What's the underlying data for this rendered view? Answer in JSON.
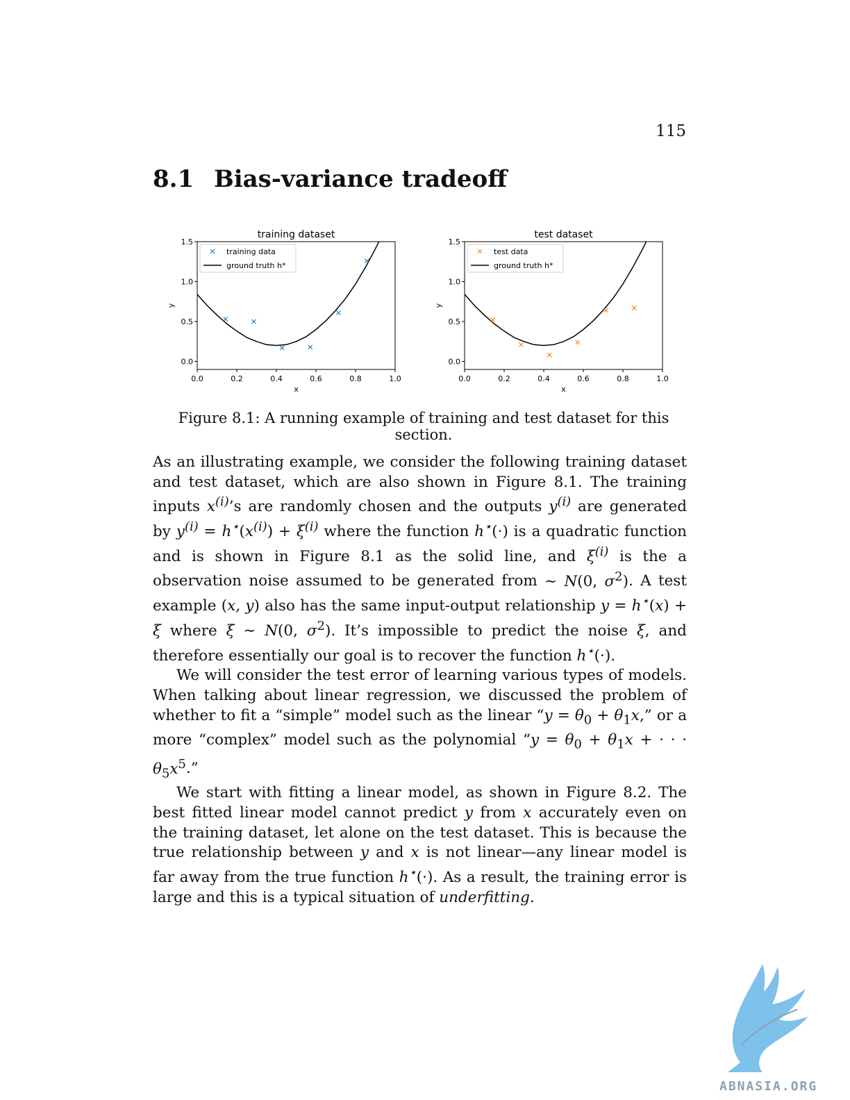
{
  "page": {
    "number": "115"
  },
  "section": {
    "number": "8.1",
    "title": "Bias-variance tradeoff"
  },
  "figure": {
    "caption": "Figure 8.1: A running example of training and test dataset for this section."
  },
  "chart_data": [
    {
      "type": "scatter",
      "title": "training dataset",
      "xlabel": "x",
      "ylabel": "y",
      "xlim": [
        0.0,
        1.0
      ],
      "ylim": [
        -0.1,
        1.5
      ],
      "xticks": [
        "0.0",
        "0.2",
        "0.4",
        "0.6",
        "0.8",
        "1.0"
      ],
      "yticks": [
        "0.0",
        "0.5",
        "1.0",
        "1.5"
      ],
      "grid": false,
      "legend_position": "top-left",
      "series": [
        {
          "name": "training data",
          "kind": "scatter",
          "marker": "x",
          "color": "#1f77b4",
          "x": [
            0.143,
            0.286,
            0.429,
            0.571,
            0.714,
            0.857
          ],
          "y": [
            0.53,
            0.5,
            0.17,
            0.18,
            0.61,
            1.26
          ]
        },
        {
          "name": "ground truth h*",
          "kind": "line",
          "color": "#000000",
          "x": [
            0.0,
            0.05,
            0.1,
            0.15,
            0.2,
            0.25,
            0.3,
            0.35,
            0.4,
            0.45,
            0.5,
            0.55,
            0.6,
            0.65,
            0.7,
            0.75,
            0.8,
            0.85,
            0.9,
            0.95,
            1.0
          ],
          "y": [
            0.84,
            0.7,
            0.58,
            0.47,
            0.38,
            0.3,
            0.25,
            0.21,
            0.2,
            0.21,
            0.25,
            0.31,
            0.4,
            0.51,
            0.64,
            0.79,
            0.97,
            1.18,
            1.41,
            1.66,
            1.94
          ]
        }
      ]
    },
    {
      "type": "scatter",
      "title": "test dataset",
      "xlabel": "x",
      "ylabel": "y",
      "xlim": [
        0.0,
        1.0
      ],
      "ylim": [
        -0.1,
        1.5
      ],
      "xticks": [
        "0.0",
        "0.2",
        "0.4",
        "0.6",
        "0.8",
        "1.0"
      ],
      "yticks": [
        "0.0",
        "0.5",
        "1.0",
        "1.5"
      ],
      "grid": false,
      "legend_position": "top-left",
      "series": [
        {
          "name": "test data",
          "kind": "scatter",
          "marker": "x",
          "color": "#ff7f0e",
          "x": [
            0.143,
            0.286,
            0.429,
            0.571,
            0.714,
            0.857
          ],
          "y": [
            0.52,
            0.21,
            0.08,
            0.24,
            0.64,
            0.67
          ]
        },
        {
          "name": "ground truth h*",
          "kind": "line",
          "color": "#000000",
          "x": [
            0.0,
            0.05,
            0.1,
            0.15,
            0.2,
            0.25,
            0.3,
            0.35,
            0.4,
            0.45,
            0.5,
            0.55,
            0.6,
            0.65,
            0.7,
            0.75,
            0.8,
            0.85,
            0.9,
            0.95,
            1.0
          ],
          "y": [
            0.84,
            0.7,
            0.58,
            0.47,
            0.38,
            0.3,
            0.25,
            0.21,
            0.2,
            0.21,
            0.25,
            0.31,
            0.4,
            0.51,
            0.64,
            0.79,
            0.97,
            1.18,
            1.41,
            1.66,
            1.94
          ]
        }
      ]
    }
  ],
  "body": {
    "p1": {
      "t1": "As an illustrating example, we consider the following training dataset and test dataset, which are also shown in Figure 8.1. The training inputs ",
      "t2": "’s are randomly chosen and the outputs ",
      "t3": " are generated by ",
      "t4": " where the function ",
      "t5": " is a quadratic function and is shown in Figure 8.1 as the solid line, and ",
      "t6": " is the a observation noise assumed to be generated from ",
      "t7": ". A test example ",
      "t8": " also has the same input-output relationship ",
      "t9": " where ",
      "t10": ". It’s impossible to predict the noise ",
      "t11": ", and therefore essentially our goal is to recover the function ",
      "t12": "."
    },
    "p2": {
      "t1": "We will consider the test error of learning various types of models. When talking about linear regression, we discussed the problem of whether to fit a “simple” model such as the linear “",
      "t2": ",” or a more “complex” model such as the polynomial “",
      "t3": ".”"
    },
    "p3": {
      "t1": "We start with fitting a linear model, as shown in Figure 8.2. The best fitted linear model cannot predict ",
      "t2": " from ",
      "t3": " accurately even on the training dataset, let alone on the test dataset. This is because the true relationship between ",
      "t4": " and ",
      "t5": " is not linear—any linear model is far away from the true function ",
      "t6": ". As a result, the training error is large and this is a typical situation of ",
      "t7": "underfitting",
      "t8": "."
    }
  },
  "watermark": {
    "text": "ABNASIA.ORG",
    "icon": "griffin-logo-icon",
    "color": "#8aa2b4",
    "logo_color": "#7ec1ea"
  }
}
